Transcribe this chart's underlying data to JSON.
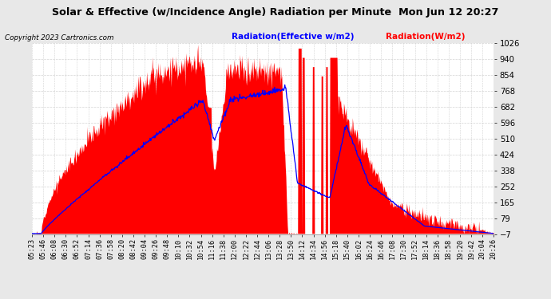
{
  "title": "Solar & Effective (w/Incidence Angle) Radiation per Minute  Mon Jun 12 20:27",
  "copyright": "Copyright 2023 Cartronics.com",
  "legend_blue": "Radiation(Effective w/m2)",
  "legend_red": "Radiation(W/m2)",
  "ymin": -6.7,
  "ymax": 1026.0,
  "yticks": [
    1026.0,
    939.9,
    853.9,
    767.8,
    681.8,
    595.7,
    509.7,
    423.6,
    337.5,
    251.5,
    165.4,
    79.4,
    -6.7
  ],
  "background_color": "#e8e8e8",
  "plot_bg": "#ffffff",
  "grid_color": "#c8c8c8",
  "red_color": "#ff0000",
  "blue_color": "#0000ff",
  "title_color": "#000000",
  "x_time_labels": [
    "05:23",
    "05:46",
    "06:08",
    "06:30",
    "06:52",
    "07:14",
    "07:36",
    "07:58",
    "08:20",
    "08:42",
    "09:04",
    "09:26",
    "09:48",
    "10:10",
    "10:32",
    "10:54",
    "11:16",
    "11:38",
    "12:00",
    "12:22",
    "12:44",
    "13:06",
    "13:28",
    "13:50",
    "14:12",
    "14:34",
    "14:56",
    "15:18",
    "15:40",
    "16:02",
    "16:24",
    "16:46",
    "17:08",
    "17:30",
    "17:52",
    "18:14",
    "18:36",
    "18:58",
    "19:20",
    "19:42",
    "20:04",
    "20:26"
  ],
  "n_points": 903
}
